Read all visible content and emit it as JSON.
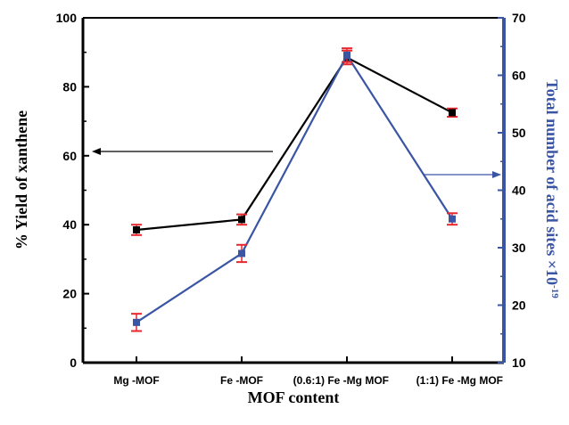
{
  "chart_data": {
    "type": "line",
    "categories": [
      "Mg -MOF",
      "Fe -MOF",
      "(0.6:1) Fe -Mg MOF",
      "(1:1) Fe -Mg MOF"
    ],
    "xlabel": "MOF content",
    "ylabel_left": "% Yield of xanthene",
    "ylabel_right": "Total number of acid sites ×10",
    "ylabel_right_exponent": "-19",
    "ylim_left": [
      0,
      100
    ],
    "ylim_right": [
      10,
      70
    ],
    "yticks_left": [
      "0",
      "20",
      "40",
      "60",
      "80",
      "100"
    ],
    "yticks_right": [
      "10",
      "20",
      "30",
      "40",
      "50",
      "60",
      "70"
    ],
    "grid": false,
    "series": [
      {
        "axis": "left",
        "color": "#000000",
        "marker_color": "#000000",
        "values": [
          38.5,
          41.5,
          88.5,
          72.5
        ],
        "errors": [
          1.5,
          1.5,
          2.0,
          1.2
        ]
      },
      {
        "axis": "right",
        "color": "#3a55a4",
        "marker_color": "#3a55a4",
        "values": [
          17.0,
          29.0,
          63.5,
          35.0
        ],
        "errors": [
          1.5,
          1.5,
          1.2,
          1.0
        ]
      }
    ],
    "annotations": [
      {
        "type": "arrow",
        "direction": "left",
        "points_to": "left-axis"
      },
      {
        "type": "arrow",
        "direction": "right",
        "points_to": "right-axis"
      }
    ],
    "colors": {
      "error_bar": "#e8262d",
      "right_axis": "#3a55a4",
      "left_axis": "#000000"
    }
  }
}
